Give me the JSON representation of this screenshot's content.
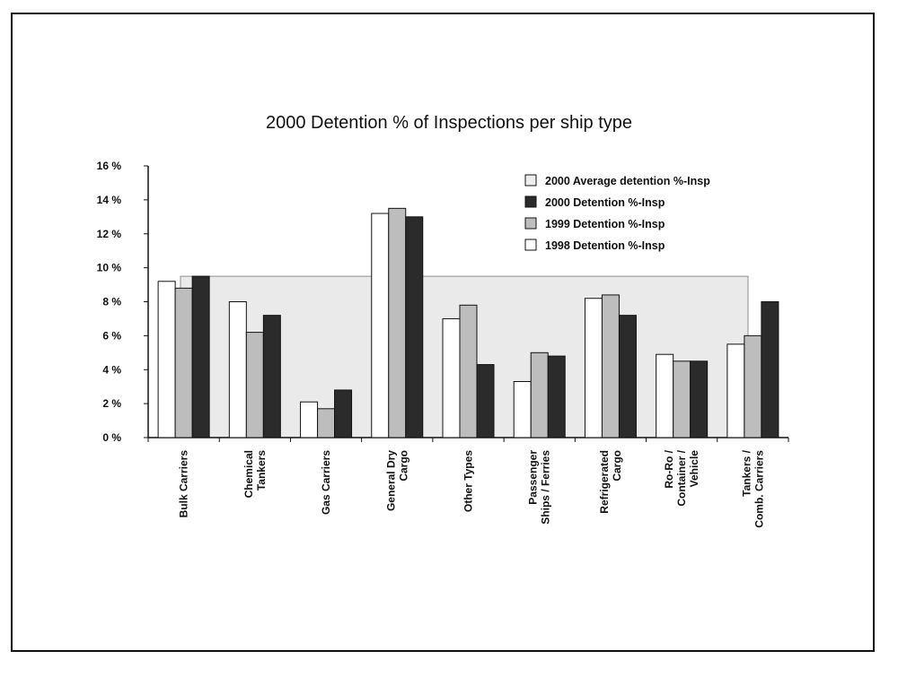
{
  "chart_data": {
    "type": "bar",
    "title": "2000 Detention % of Inspections per ship type",
    "xlabel": "",
    "ylabel": "",
    "ylim": [
      0,
      16
    ],
    "yticks": [
      "0 %",
      "2 %",
      "4 %",
      "6 %",
      "8 %",
      "10 %",
      "12 %",
      "14 %",
      "16 %"
    ],
    "categories": [
      [
        "Bulk Carriers"
      ],
      [
        "Chemical",
        "Tankers"
      ],
      [
        "Gas Carriers"
      ],
      [
        "General Dry",
        "Cargo"
      ],
      [
        "Other Types"
      ],
      [
        "Passenger",
        "Ships / Ferries"
      ],
      [
        "Refrigerated",
        "Cargo"
      ],
      [
        "Ro-Ro /",
        "Container /",
        "Vehicle"
      ],
      [
        "Tankers /",
        "Comb. Carriers"
      ]
    ],
    "series": [
      {
        "name": "1998 Detention %-Insp",
        "color": "#ffffff",
        "values": [
          9.2,
          8.0,
          2.1,
          13.2,
          7.0,
          3.3,
          8.2,
          4.9,
          5.5
        ]
      },
      {
        "name": "1999 Detention %-Insp",
        "color": "#bdbdbd",
        "values": [
          8.8,
          6.2,
          1.7,
          13.5,
          7.8,
          5.0,
          8.4,
          4.5,
          6.0
        ]
      },
      {
        "name": "2000 Detention %-Insp",
        "color": "#2b2b2b",
        "values": [
          9.5,
          7.2,
          2.8,
          13.0,
          4.3,
          4.8,
          7.2,
          4.5,
          8.0
        ]
      }
    ],
    "average": {
      "name": "2000 Average detention %-Insp",
      "value": 9.5,
      "color": "#d9d9d9"
    },
    "legend": [
      {
        "label": "2000 Average detention %-Insp",
        "color": "#eeeeee"
      },
      {
        "label": "2000 Detention %-Insp",
        "color": "#2b2b2b"
      },
      {
        "label": "1999 Detention %-Insp",
        "color": "#bdbdbd"
      },
      {
        "label": "1998 Detention %-Insp",
        "color": "#ffffff"
      }
    ],
    "legend_position": "top-right",
    "grid": false
  }
}
